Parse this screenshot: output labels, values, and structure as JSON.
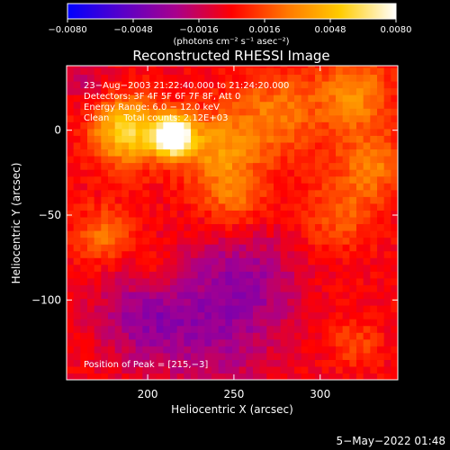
{
  "chart_data": {
    "type": "heatmap",
    "title": "Reconstructed RHESSI Image",
    "xlabel": "Heliocentric X (arcsec)",
    "ylabel": "Heliocentric Y (arcsec)",
    "xlim": [
      153,
      345
    ],
    "ylim": [
      -147,
      38
    ],
    "x_ticks": [
      200,
      250,
      300
    ],
    "y_ticks": [
      0,
      -50,
      -100
    ],
    "colorbar": {
      "min": -0.008,
      "max": 0.008,
      "tick_values": [
        -0.008,
        -0.0048,
        -0.0016,
        0.0016,
        0.0048,
        0.008
      ],
      "tick_labels": [
        "−0.0080",
        "−0.0048",
        "−0.0016",
        "0.0016",
        "0.0048",
        "0.0080"
      ],
      "units": "(photons cm⁻² s⁻¹ asec⁻²)",
      "colors": [
        "#0000ff",
        "#5a00c8",
        "#a8008c",
        "#ff0000",
        "#ff7800",
        "#ffcc00",
        "#ffffff"
      ]
    },
    "annotations": [
      "23−Aug−2003 21:22:40.000 to 21:24:20.000",
      "Detectors: 3F 4F 5F 6F 7F 8F, Att 0",
      "Energy Range: 6.0 − 12.0 keV",
      "Clean     Total counts: 2.12E+03"
    ],
    "peak_label": "Position of Peak = [215,−3]",
    "peak": [
      215,
      -3
    ],
    "sources": [
      {
        "x": 215,
        "y": -3,
        "sigma": 8,
        "amp": 0.0105
      },
      {
        "x": 188,
        "y": 0,
        "sigma": 14,
        "amp": 0.006
      },
      {
        "x": 240,
        "y": -10,
        "sigma": 16,
        "amp": 0.0035
      },
      {
        "x": 275,
        "y": 10,
        "sigma": 18,
        "amp": 0.0028
      },
      {
        "x": 320,
        "y": 22,
        "sigma": 15,
        "amp": 0.0035
      },
      {
        "x": 330,
        "y": -20,
        "sigma": 14,
        "amp": 0.003
      },
      {
        "x": 310,
        "y": -50,
        "sigma": 15,
        "amp": 0.0022
      },
      {
        "x": 250,
        "y": -40,
        "sigma": 14,
        "amp": 0.0024
      },
      {
        "x": 175,
        "y": -62,
        "sigma": 12,
        "amp": 0.0028
      },
      {
        "x": 205,
        "y": -85,
        "sigma": 10,
        "amp": 0.0016
      },
      {
        "x": 320,
        "y": -125,
        "sigma": 10,
        "amp": 0.0018
      },
      {
        "x": 200,
        "y": -108,
        "sigma": 20,
        "amp": -0.0032
      },
      {
        "x": 255,
        "y": -90,
        "sigma": 22,
        "amp": -0.003
      },
      {
        "x": 240,
        "y": -130,
        "sigma": 22,
        "amp": -0.0018
      },
      {
        "x": 165,
        "y": 30,
        "sigma": 10,
        "amp": -0.0015
      }
    ]
  },
  "footer": {
    "date": "5−May−2022 01:48"
  }
}
